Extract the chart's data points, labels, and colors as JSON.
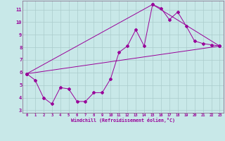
{
  "xlabel": "Windchill (Refroidissement éolien,°C)",
  "bg_color": "#c8e8e8",
  "line_color": "#990099",
  "grid_color": "#aacccc",
  "spine_color": "#806080",
  "xlim": [
    -0.5,
    23.5
  ],
  "ylim": [
    2.8,
    11.7
  ],
  "yticks": [
    3,
    4,
    5,
    6,
    7,
    8,
    9,
    10,
    11
  ],
  "xticks": [
    0,
    1,
    2,
    3,
    4,
    5,
    6,
    7,
    8,
    9,
    10,
    11,
    12,
    13,
    14,
    15,
    16,
    17,
    18,
    19,
    20,
    21,
    22,
    23
  ],
  "line1_x": [
    0,
    1,
    2,
    3,
    4,
    5,
    6,
    7,
    8,
    9,
    10,
    11,
    12,
    13,
    14,
    15,
    16,
    17,
    18,
    19,
    20,
    21,
    22,
    23
  ],
  "line1_y": [
    5.9,
    5.4,
    4.0,
    3.5,
    4.8,
    4.7,
    3.7,
    3.7,
    4.4,
    4.4,
    5.5,
    7.6,
    8.1,
    9.4,
    8.1,
    11.4,
    11.1,
    10.2,
    10.8,
    9.7,
    8.5,
    8.3,
    8.2,
    8.1
  ],
  "line2_x": [
    0,
    23
  ],
  "line2_y": [
    5.9,
    8.1
  ],
  "line3_x": [
    0,
    15,
    23
  ],
  "line3_y": [
    5.9,
    11.4,
    8.1
  ]
}
